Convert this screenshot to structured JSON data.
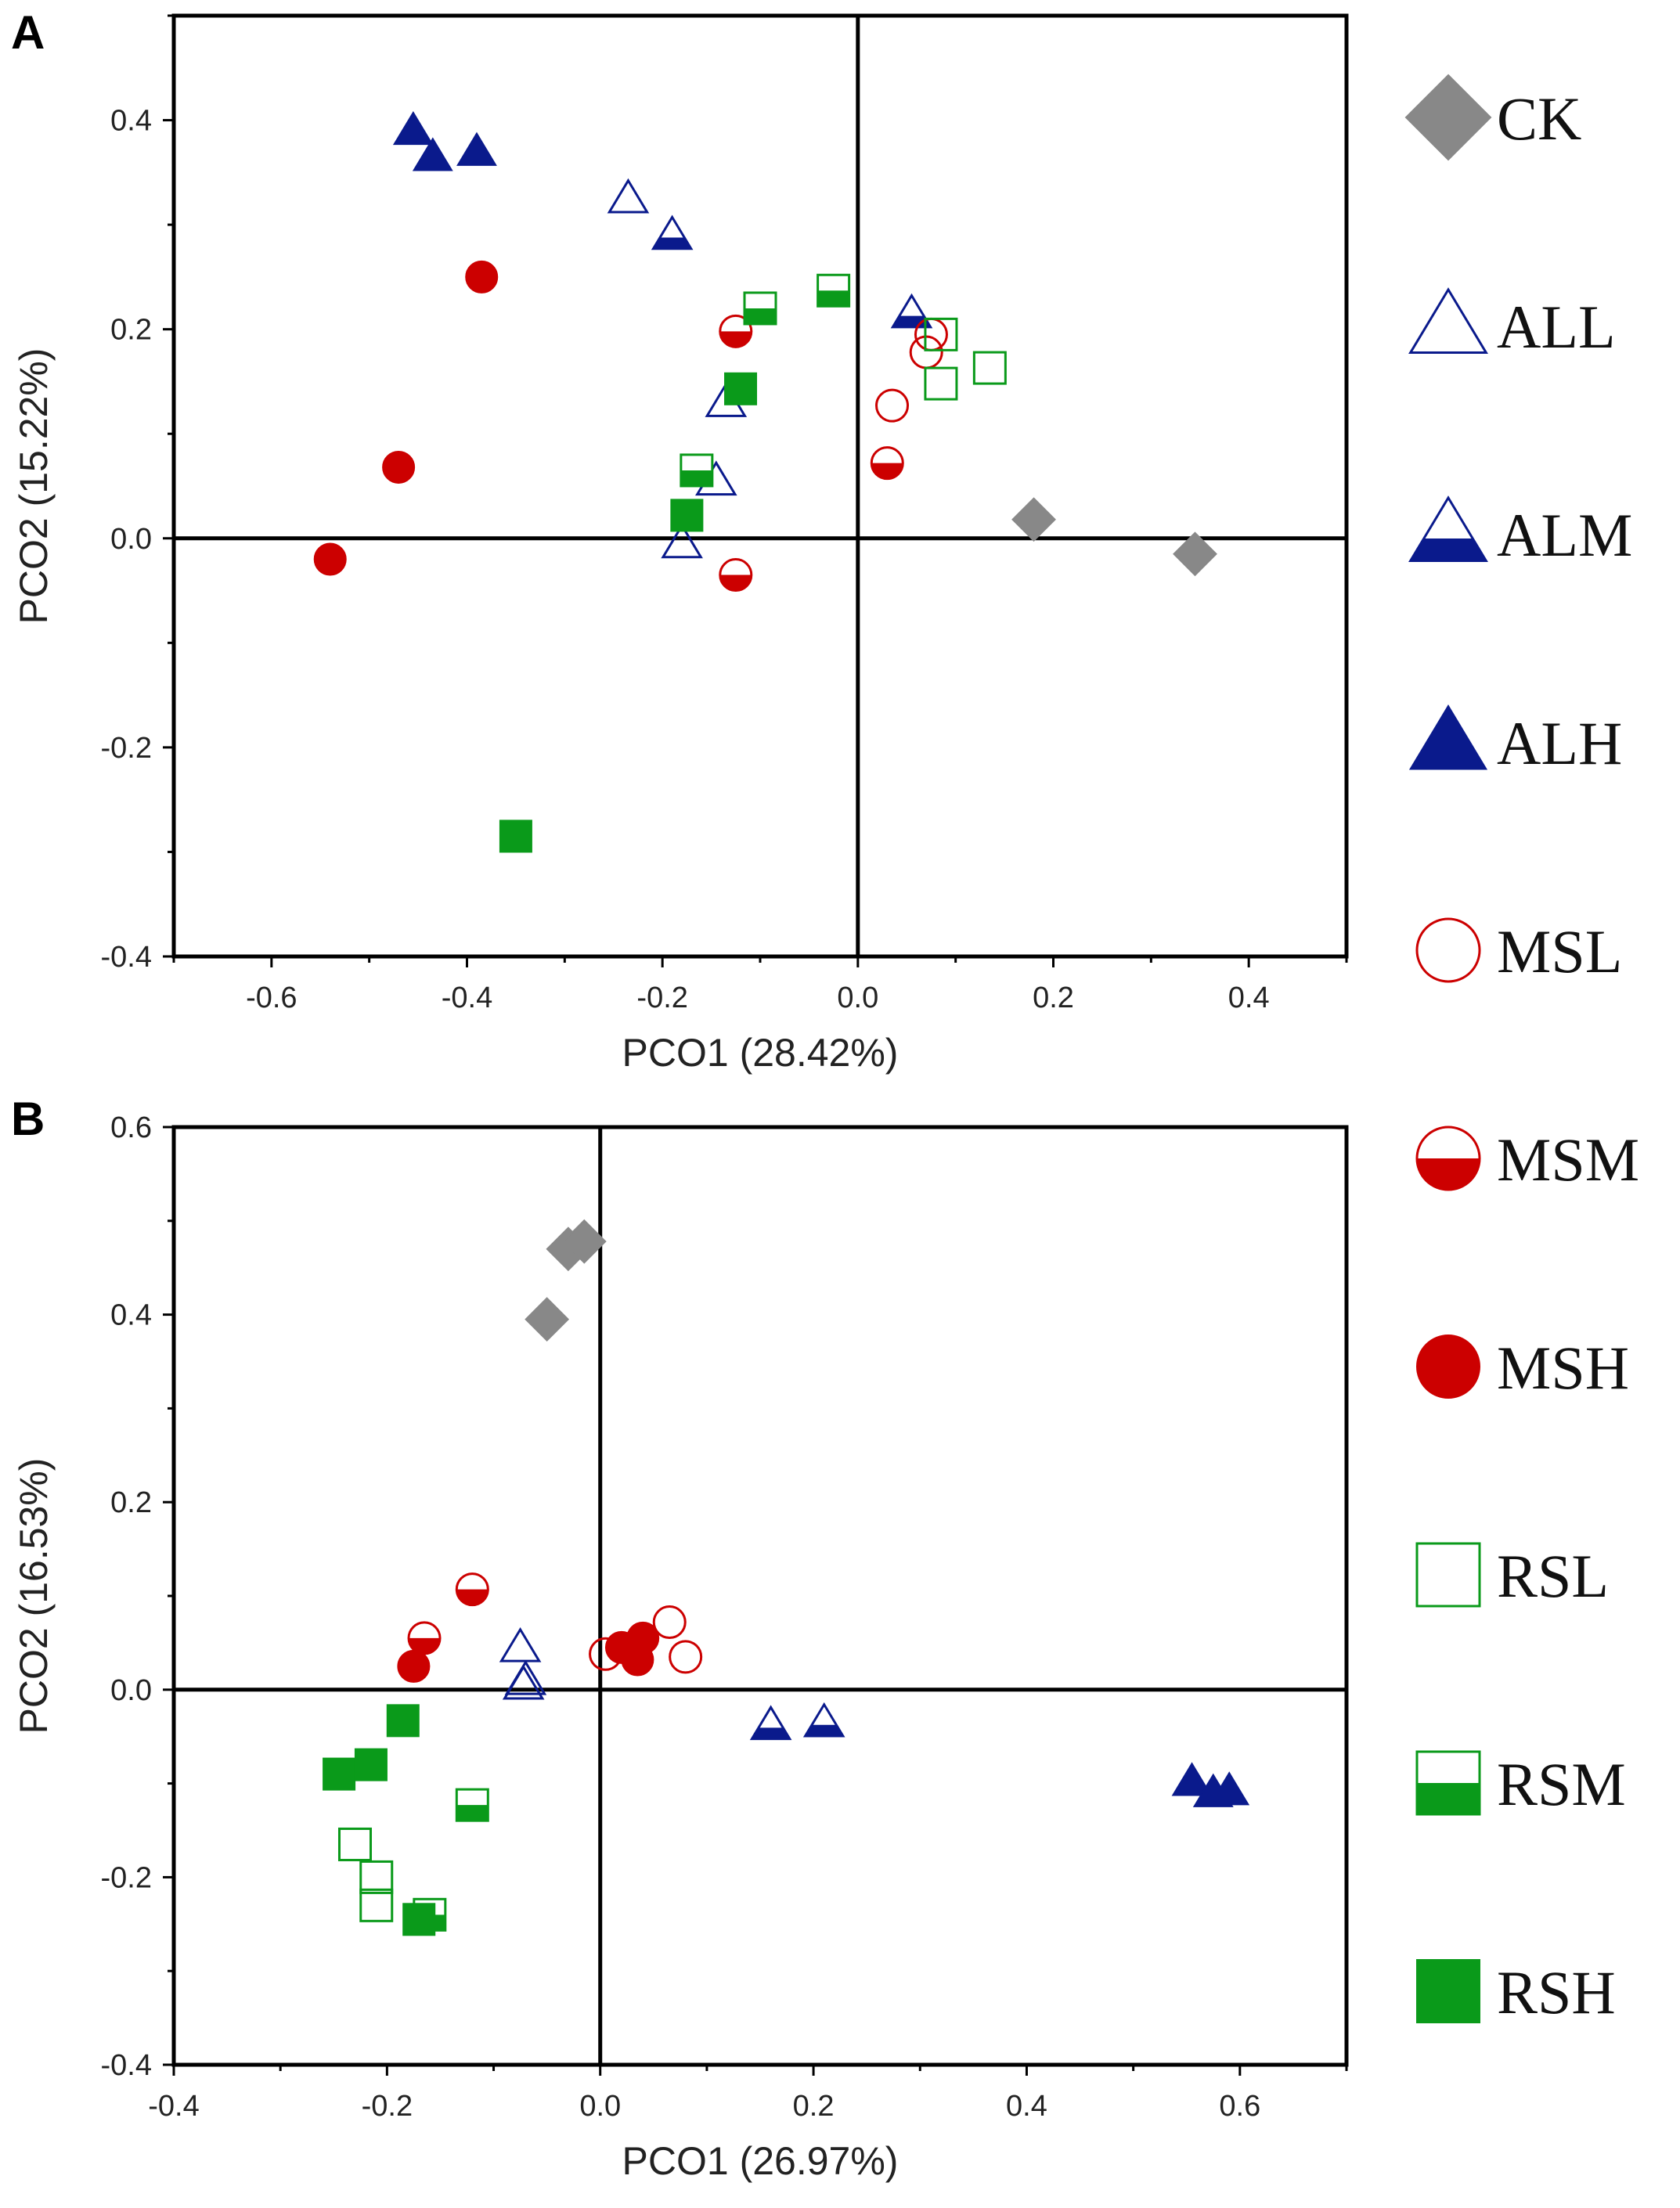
{
  "legend": [
    {
      "label": "CK",
      "marker": "diamond",
      "fill": "full",
      "color": "#888888"
    },
    {
      "label": "ALL",
      "marker": "triangle",
      "fill": "none",
      "color": "#0a1a8c"
    },
    {
      "label": "ALM",
      "marker": "triangle",
      "fill": "bottom",
      "color": "#0a1a8c"
    },
    {
      "label": "ALH",
      "marker": "triangle",
      "fill": "full",
      "color": "#0a1a8c"
    },
    {
      "label": "MSL",
      "marker": "circle",
      "fill": "none",
      "color": "#cc0000"
    },
    {
      "label": "MSM",
      "marker": "circle",
      "fill": "bottom",
      "color": "#cc0000"
    },
    {
      "label": "MSH",
      "marker": "circle",
      "fill": "full",
      "color": "#cc0000"
    },
    {
      "label": "RSL",
      "marker": "square",
      "fill": "none",
      "color": "#0a9a1a"
    },
    {
      "label": "RSM",
      "marker": "square",
      "fill": "bottom",
      "color": "#0a9a1a"
    },
    {
      "label": "RSH",
      "marker": "square",
      "fill": "full",
      "color": "#0a9a1a"
    }
  ],
  "chart_data": [
    {
      "type": "scatter",
      "panel": "A",
      "xlabel": "PCO1 (28.42%)",
      "ylabel": "PCO2 (15.22%)",
      "xlim": [
        -0.7,
        0.5
      ],
      "ylim": [
        -0.4,
        0.5
      ],
      "xticks": [
        -0.6,
        -0.4,
        -0.2,
        0.0,
        0.2,
        0.4
      ],
      "xtick_labels": [
        "-0.6",
        "-0.4",
        "-0.2",
        "0.0",
        "0.2",
        "0.4"
      ],
      "yticks": [
        -0.4,
        -0.2,
        0.0,
        0.2,
        0.4
      ],
      "ytick_labels": [
        "-0.4",
        "-0.2",
        "0.0",
        "0.2",
        "0.4"
      ],
      "series": [
        {
          "name": "CK",
          "points": [
            [
              0.18,
              0.018
            ],
            [
              0.345,
              -0.015
            ]
          ]
        },
        {
          "name": "ALL",
          "points": [
            [
              -0.235,
              0.325
            ],
            [
              -0.135,
              0.13
            ],
            [
              -0.145,
              0.055
            ],
            [
              -0.18,
              -0.005
            ]
          ]
        },
        {
          "name": "ALM",
          "points": [
            [
              -0.19,
              0.29
            ],
            [
              0.055,
              0.215
            ]
          ]
        },
        {
          "name": "ALH",
          "points": [
            [
              -0.455,
              0.39
            ],
            [
              -0.435,
              0.365
            ],
            [
              -0.39,
              0.37
            ]
          ]
        },
        {
          "name": "MSL",
          "points": [
            [
              0.075,
              0.195
            ],
            [
              0.07,
              0.178
            ],
            [
              0.035,
              0.127
            ]
          ]
        },
        {
          "name": "MSM",
          "points": [
            [
              -0.125,
              0.198
            ],
            [
              0.03,
              0.072
            ],
            [
              -0.125,
              -0.035
            ]
          ]
        },
        {
          "name": "MSH",
          "points": [
            [
              -0.385,
              0.25
            ],
            [
              -0.47,
              0.068
            ],
            [
              -0.54,
              -0.02
            ]
          ]
        },
        {
          "name": "RSL",
          "points": [
            [
              0.085,
              0.195
            ],
            [
              0.085,
              0.148
            ],
            [
              0.135,
              0.163
            ]
          ]
        },
        {
          "name": "RSM",
          "points": [
            [
              -0.1,
              0.22
            ],
            [
              -0.025,
              0.237
            ],
            [
              -0.165,
              0.065
            ]
          ]
        },
        {
          "name": "RSH",
          "points": [
            [
              -0.12,
              0.143
            ],
            [
              -0.175,
              0.022
            ],
            [
              -0.35,
              -0.285
            ]
          ]
        }
      ]
    },
    {
      "type": "scatter",
      "panel": "B",
      "xlabel": "PCO1 (26.97%)",
      "ylabel": "PCO2 (16.53%)",
      "xlim": [
        -0.4,
        0.7
      ],
      "ylim": [
        -0.4,
        0.6
      ],
      "xticks": [
        -0.4,
        -0.2,
        0.0,
        0.2,
        0.4,
        0.6
      ],
      "xtick_labels": [
        "-0.4",
        "-0.2",
        "0.0",
        "0.2",
        "0.4",
        "0.6"
      ],
      "yticks": [
        -0.4,
        -0.2,
        0.0,
        0.2,
        0.4,
        0.6
      ],
      "ytick_labels": [
        "-0.4",
        "-0.2",
        "0.0",
        "0.2",
        "0.4",
        "0.6"
      ],
      "series": [
        {
          "name": "CK",
          "points": [
            [
              -0.05,
              0.395
            ],
            [
              -0.03,
              0.47
            ],
            [
              -0.015,
              0.478
            ]
          ]
        },
        {
          "name": "ALL",
          "points": [
            [
              -0.075,
              0.045
            ],
            [
              -0.07,
              0.01
            ],
            [
              -0.072,
              0.005
            ]
          ]
        },
        {
          "name": "ALM",
          "points": [
            [
              0.16,
              -0.038
            ],
            [
              0.21,
              -0.035
            ]
          ]
        },
        {
          "name": "ALH",
          "points": [
            [
              0.555,
              -0.098
            ],
            [
              0.575,
              -0.11
            ],
            [
              0.59,
              -0.108
            ]
          ]
        },
        {
          "name": "MSL",
          "points": [
            [
              0.005,
              0.038
            ],
            [
              0.065,
              0.072
            ],
            [
              0.08,
              0.035
            ]
          ]
        },
        {
          "name": "MSM",
          "points": [
            [
              -0.12,
              0.107
            ],
            [
              -0.165,
              0.055
            ]
          ]
        },
        {
          "name": "MSH",
          "points": [
            [
              -0.175,
              0.025
            ],
            [
              0.02,
              0.045
            ],
            [
              0.04,
              0.055
            ],
            [
              0.035,
              0.032
            ]
          ]
        },
        {
          "name": "RSL",
          "points": [
            [
              -0.23,
              -0.165
            ],
            [
              -0.21,
              -0.2
            ],
            [
              -0.21,
              -0.23
            ]
          ]
        },
        {
          "name": "RSM",
          "points": [
            [
              -0.12,
              -0.123
            ],
            [
              -0.16,
              -0.24
            ]
          ]
        },
        {
          "name": "RSH",
          "points": [
            [
              -0.185,
              -0.033
            ],
            [
              -0.245,
              -0.09
            ],
            [
              -0.215,
              -0.08
            ],
            [
              -0.17,
              -0.245
            ]
          ]
        }
      ]
    }
  ]
}
